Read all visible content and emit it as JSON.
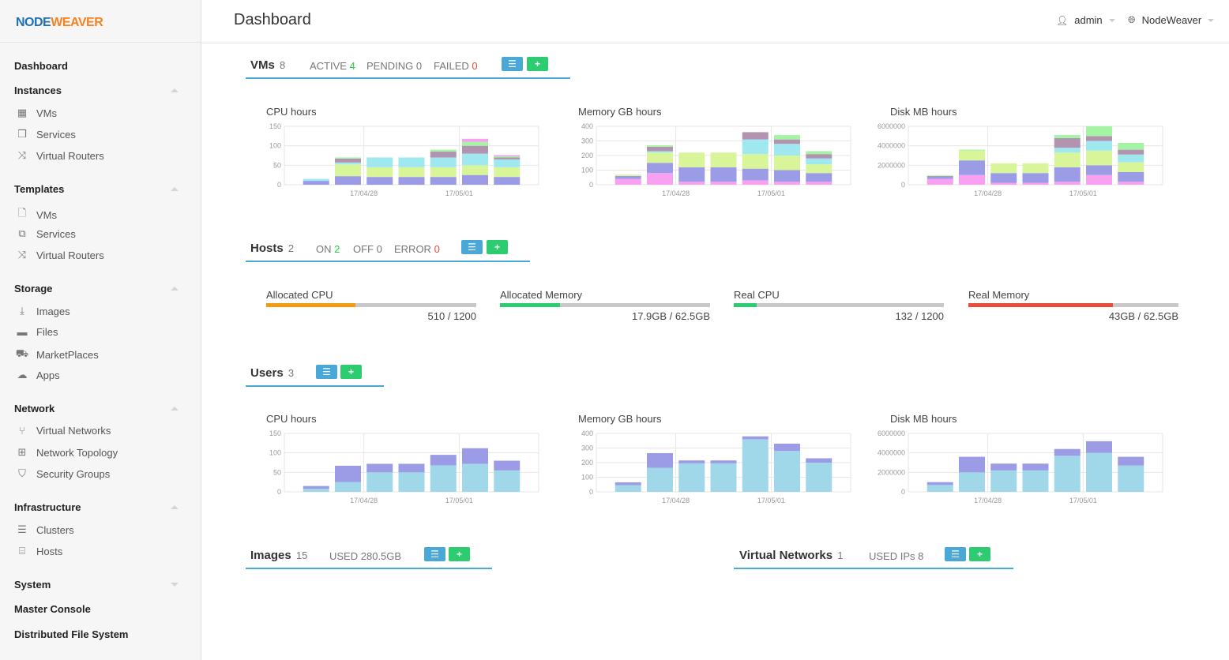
{
  "colors": {
    "accent": "#4aa8d8",
    "add_button": "#2ecc71",
    "ok_green": "#2ecc40",
    "error_red": "#e74c3c"
  },
  "logo": {
    "part1": "NODE",
    "part2": "WEAVER"
  },
  "header": {
    "title": "Dashboard",
    "user": "admin",
    "zone": "NodeWeaver"
  },
  "sidebar": {
    "dashboard": "Dashboard",
    "instances": {
      "label": "Instances",
      "items": [
        {
          "label": "VMs",
          "icon": "grid-icon"
        },
        {
          "label": "Services",
          "icon": "cubes-icon"
        },
        {
          "label": "Virtual Routers",
          "icon": "random-icon"
        }
      ]
    },
    "templates": {
      "label": "Templates",
      "items": [
        {
          "label": "VMs",
          "icon": "file-icon"
        },
        {
          "label": "Services",
          "icon": "copy-icon"
        },
        {
          "label": "Virtual Routers",
          "icon": "random-icon"
        }
      ]
    },
    "storage": {
      "label": "Storage",
      "items": [
        {
          "label": "Images",
          "icon": "download-icon"
        },
        {
          "label": "Files",
          "icon": "archive-icon"
        },
        {
          "label": "MarketPlaces",
          "icon": "cart-icon"
        },
        {
          "label": "Apps",
          "icon": "cloud-download-icon"
        }
      ]
    },
    "network": {
      "label": "Network",
      "items": [
        {
          "label": "Virtual Networks",
          "icon": "code-fork-icon"
        },
        {
          "label": "Network Topology",
          "icon": "sitemap-icon"
        },
        {
          "label": "Security Groups",
          "icon": "shield-icon"
        }
      ]
    },
    "infrastructure": {
      "label": "Infrastructure",
      "items": [
        {
          "label": "Clusters",
          "icon": "server-icon"
        },
        {
          "label": "Hosts",
          "icon": "hdd-icon"
        }
      ]
    },
    "system": "System",
    "master_console": "Master Console",
    "dfs": "Distributed File System"
  },
  "vms": {
    "title": "VMs",
    "count": "8",
    "active_label": "ACTIVE",
    "active": "4",
    "pending_label": "PENDING",
    "pending": "0",
    "failed_label": "FAILED",
    "failed": "0"
  },
  "hosts": {
    "title": "Hosts",
    "count": "2",
    "on_label": "ON",
    "on": "2",
    "off_label": "OFF",
    "off": "0",
    "error_label": "ERROR",
    "error": "0",
    "bars": [
      {
        "label": "Allocated CPU",
        "value": "510 / 1200",
        "fraction": 0.425,
        "color": "#f39c12"
      },
      {
        "label": "Allocated Memory",
        "value": "17.9GB / 62.5GB",
        "fraction": 0.286,
        "color": "#2ecc71"
      },
      {
        "label": "Real CPU",
        "value": "132 / 1200",
        "fraction": 0.11,
        "color": "#2ecc71"
      },
      {
        "label": "Real Memory",
        "value": "43GB / 62.5GB",
        "fraction": 0.688,
        "color": "#e74c3c"
      }
    ]
  },
  "users": {
    "title": "Users",
    "count": "3"
  },
  "images": {
    "title": "Images",
    "count": "15",
    "used_label": "USED",
    "used": "280.5GB"
  },
  "vnets": {
    "title": "Virtual Networks",
    "count": "1",
    "used_label": "USED IPs",
    "used": "8"
  },
  "chart_data": [
    {
      "type": "bar",
      "title": "CPU hours",
      "stacked": true,
      "xticks": [
        "17/04/28",
        "17/05/01"
      ],
      "yticks": [
        "0",
        "50",
        "100",
        "150"
      ],
      "ylim": [
        0,
        150
      ],
      "categories": 7,
      "series_colors": [
        "#9b9be6",
        "#d9f59a",
        "#a0e8f0",
        "#b394b0",
        "#a3f5a3",
        "#f7a1f0"
      ],
      "stacks": [
        [
          10,
          0,
          5,
          0,
          0,
          0
        ],
        [
          22,
          30,
          5,
          10,
          3,
          0
        ],
        [
          20,
          25,
          25,
          0,
          0,
          0
        ],
        [
          20,
          25,
          25,
          0,
          0,
          0
        ],
        [
          20,
          25,
          25,
          15,
          5,
          0
        ],
        [
          25,
          25,
          30,
          20,
          10,
          8
        ],
        [
          20,
          25,
          20,
          5,
          3,
          3
        ]
      ]
    },
    {
      "type": "bar",
      "title": "Memory GB hours",
      "stacked": true,
      "xticks": [
        "17/04/28",
        "17/05/01"
      ],
      "yticks": [
        "0",
        "100",
        "200",
        "300",
        "400"
      ],
      "ylim": [
        0,
        400
      ],
      "categories": 7,
      "series_colors": [
        "#f7a1f0",
        "#9b9be6",
        "#d9f59a",
        "#a0e8f0",
        "#b394b0",
        "#a3f5a3"
      ],
      "stacks": [
        [
          40,
          20,
          10,
          0,
          0,
          0
        ],
        [
          80,
          70,
          70,
          10,
          30,
          10
        ],
        [
          20,
          100,
          100,
          0,
          0,
          0
        ],
        [
          20,
          100,
          100,
          0,
          0,
          0
        ],
        [
          30,
          80,
          100,
          100,
          50,
          0
        ],
        [
          20,
          80,
          100,
          80,
          30,
          30
        ],
        [
          20,
          60,
          60,
          40,
          30,
          20
        ]
      ]
    },
    {
      "type": "bar",
      "title": "Disk MB hours",
      "stacked": true,
      "xticks": [
        "17/04/28",
        "17/05/01"
      ],
      "yticks": [
        "0",
        "2000000",
        "4000000",
        "6000000"
      ],
      "ylim": [
        0,
        6000000
      ],
      "categories": 7,
      "series_colors": [
        "#f7a1f0",
        "#9b9be6",
        "#d9f59a",
        "#a0e8f0",
        "#b394b0",
        "#a3f5a3"
      ],
      "stacks": [
        [
          600000,
          300000,
          100000,
          0,
          0,
          0
        ],
        [
          1000000,
          1500000,
          1000000,
          0,
          0,
          100000
        ],
        [
          200000,
          1000000,
          1000000,
          0,
          0,
          0
        ],
        [
          200000,
          1000000,
          1000000,
          0,
          0,
          0
        ],
        [
          300000,
          1500000,
          1500000,
          500000,
          1000000,
          300000
        ],
        [
          1000000,
          1000000,
          1500000,
          1000000,
          500000,
          1000000
        ],
        [
          300000,
          1000000,
          1000000,
          800000,
          500000,
          700000
        ]
      ]
    },
    {
      "type": "bar",
      "title": "CPU hours",
      "stacked": true,
      "xticks": [
        "17/04/28",
        "17/05/01"
      ],
      "yticks": [
        "0",
        "50",
        "100",
        "150"
      ],
      "ylim": [
        0,
        150
      ],
      "categories": 7,
      "series_colors": [
        "#a0d8ea",
        "#9b9be6"
      ],
      "stacks": [
        [
          8,
          7
        ],
        [
          25,
          42
        ],
        [
          50,
          22
        ],
        [
          50,
          22
        ],
        [
          68,
          27
        ],
        [
          72,
          40
        ],
        [
          55,
          25
        ]
      ]
    },
    {
      "type": "bar",
      "title": "Memory GB hours",
      "stacked": true,
      "xticks": [
        "17/04/28",
        "17/05/01"
      ],
      "yticks": [
        "0",
        "100",
        "200",
        "300",
        "400"
      ],
      "ylim": [
        0,
        400
      ],
      "categories": 7,
      "series_colors": [
        "#a0d8ea",
        "#9b9be6"
      ],
      "stacks": [
        [
          45,
          20
        ],
        [
          165,
          100
        ],
        [
          195,
          20
        ],
        [
          195,
          20
        ],
        [
          360,
          20
        ],
        [
          280,
          50
        ],
        [
          200,
          30
        ]
      ]
    },
    {
      "type": "bar",
      "title": "Disk MB hours",
      "stacked": true,
      "xticks": [
        "17/04/28",
        "17/05/01"
      ],
      "yticks": [
        "0",
        "2000000",
        "4000000",
        "6000000"
      ],
      "ylim": [
        0,
        6000000
      ],
      "categories": 7,
      "series_colors": [
        "#a0d8ea",
        "#9b9be6"
      ],
      "stacks": [
        [
          700000,
          300000
        ],
        [
          2000000,
          1600000
        ],
        [
          2200000,
          700000
        ],
        [
          2200000,
          700000
        ],
        [
          3700000,
          700000
        ],
        [
          4000000,
          1200000
        ],
        [
          2700000,
          900000
        ]
      ]
    }
  ]
}
